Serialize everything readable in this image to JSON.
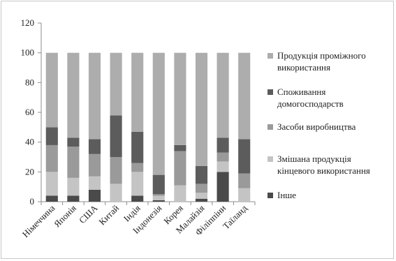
{
  "chart_data": {
    "type": "bar",
    "stacked": true,
    "title": "",
    "xlabel": "",
    "ylabel": "",
    "ylim": [
      0,
      120
    ],
    "yticks": [
      0,
      20,
      40,
      60,
      80,
      100,
      120
    ],
    "grid": false,
    "legend_position": "right",
    "categories": [
      "Німеччина",
      "Японія",
      "США",
      "Китай",
      "Індія",
      "Індонезія",
      "Корея",
      "Малайзія",
      "Філіппіни",
      "Таїланд"
    ],
    "series": [
      {
        "name": "Інше",
        "color": "#4a4a4a",
        "values": [
          4,
          4,
          8,
          0,
          4,
          1,
          0,
          2,
          20,
          0
        ]
      },
      {
        "name": "Змішана продукція кінцевого використання",
        "color": "#c4c4c4",
        "values": [
          16,
          12,
          9,
          12,
          16,
          3,
          11,
          4,
          7,
          9
        ]
      },
      {
        "name": "Засоби виробництва",
        "color": "#9a9a9a",
        "values": [
          18,
          21,
          15,
          18,
          6,
          1,
          23,
          6,
          6,
          10
        ]
      },
      {
        "name": "Споживання домогосподарств",
        "color": "#5c5c5c",
        "values": [
          12,
          6,
          10,
          28,
          21,
          13,
          4,
          12,
          10,
          23
        ]
      },
      {
        "name": "Продукція проміжного використання",
        "color": "#adadad",
        "values": [
          50,
          57,
          58,
          42,
          53,
          82,
          62,
          76,
          57,
          58
        ]
      }
    ]
  }
}
